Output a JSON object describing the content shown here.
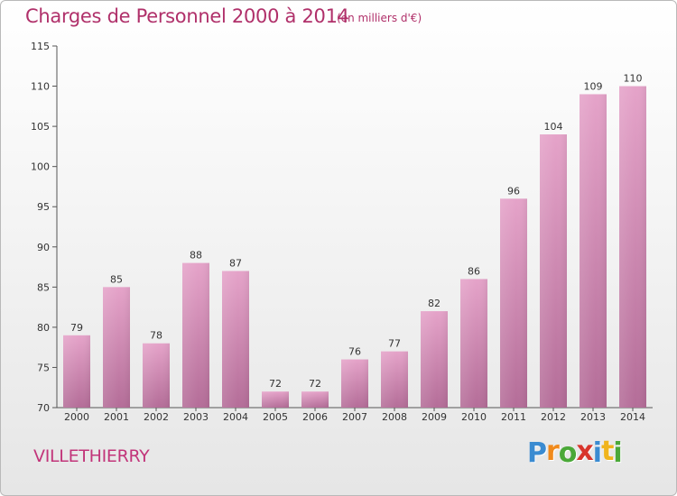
{
  "title": "Charges de Personnel 2000 à 2014",
  "subtitle": "(en milliers d'€)",
  "place": "VILLETHIERRY",
  "logo": {
    "text": "Proxiti",
    "letters": [
      {
        "ch": "P",
        "color": "#3a8bd1"
      },
      {
        "ch": "r",
        "color": "#f08a1c"
      },
      {
        "ch": "o",
        "color": "#4aa838"
      },
      {
        "ch": "x",
        "color": "#d8352c"
      },
      {
        "ch": "i",
        "color": "#3a8bd1"
      },
      {
        "ch": "t",
        "color": "#f0b41c"
      },
      {
        "ch": "i",
        "color": "#4aa838"
      }
    ]
  },
  "colors": {
    "bar_top": "#e5a3c9",
    "bar_bottom": "#b46d98",
    "title": "#b0306a",
    "axis": "#333333"
  },
  "chart_data": {
    "type": "bar",
    "title": "Charges de Personnel 2000 à 2014",
    "subtitle": "(en milliers d'€)",
    "categories": [
      "2000",
      "2001",
      "2002",
      "2003",
      "2004",
      "2005",
      "2006",
      "2007",
      "2008",
      "2009",
      "2010",
      "2011",
      "2012",
      "2013",
      "2014"
    ],
    "values": [
      79,
      85,
      78,
      88,
      87,
      72,
      72,
      76,
      77,
      82,
      86,
      96,
      104,
      109,
      110
    ],
    "ylim": [
      70,
      115
    ],
    "yticks": [
      70,
      75,
      80,
      85,
      90,
      95,
      100,
      105,
      110,
      115
    ],
    "grid": false,
    "legend": "none",
    "data_labels": true
  }
}
